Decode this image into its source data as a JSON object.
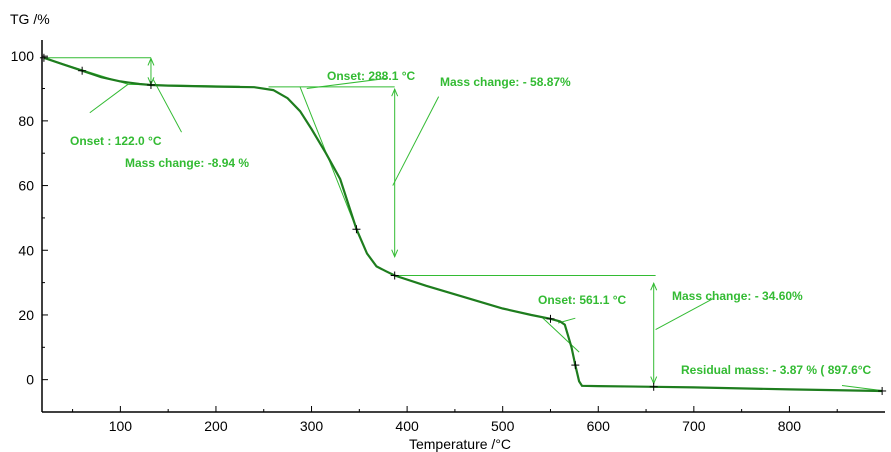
{
  "chart_data": {
    "type": "line",
    "ylabel": "TG /%",
    "xlabel": "Temperature /°C",
    "xlim": [
      18,
      900
    ],
    "ylim": [
      -10,
      105
    ],
    "x_ticks": [
      100,
      200,
      300,
      400,
      500,
      600,
      700,
      800
    ],
    "y_ticks": [
      0,
      20,
      40,
      60,
      80,
      100
    ],
    "grid": false,
    "colors": {
      "curve": "#1e7d1e",
      "annotation": "#33bb33",
      "axis": "#000000"
    },
    "series": [
      {
        "x": [
          20,
          40,
          60,
          80,
          100,
          120,
          132,
          150,
          200,
          240,
          260,
          275,
          288,
          300,
          315,
          330,
          347,
          358,
          368,
          378,
          387,
          420,
          460,
          500,
          530,
          550,
          560,
          565,
          568,
          572,
          576,
          580,
          583,
          600,
          658,
          700,
          800,
          897
        ],
        "y": [
          99.5,
          97.5,
          95.5,
          93.5,
          92.2,
          91.4,
          91.1,
          90.9,
          90.6,
          90.4,
          89.5,
          87.0,
          83.0,
          77.5,
          70.0,
          62.0,
          46.5,
          39.0,
          35.0,
          33.5,
          32.2,
          29.0,
          25.5,
          22.0,
          20.0,
          18.8,
          18.0,
          17.0,
          14.0,
          10.0,
          4.5,
          -0.5,
          -1.9,
          -2.0,
          -2.2,
          -2.4,
          -3.0,
          -3.5
        ]
      }
    ],
    "markers": [
      {
        "x": 20,
        "y": 99.5
      },
      {
        "x": 60,
        "y": 95.5
      },
      {
        "x": 132,
        "y": 91.1
      },
      {
        "x": 347,
        "y": 46.5
      },
      {
        "x": 387,
        "y": 32.2
      },
      {
        "x": 550,
        "y": 18.8
      },
      {
        "x": 576,
        "y": 4.5
      },
      {
        "x": 658,
        "y": -2.2
      },
      {
        "x": 897,
        "y": -3.5
      }
    ],
    "annotations": [
      "Onset : 122.0 °C",
      "Mass change: -8.94 %",
      "Onset: 288.1 °C",
      "Mass change: - 58.87%",
      "Onset: 561.1 °C",
      "Mass change: - 34.60%",
      "Residual mass: - 3.87 % ( 897.6°C"
    ]
  }
}
